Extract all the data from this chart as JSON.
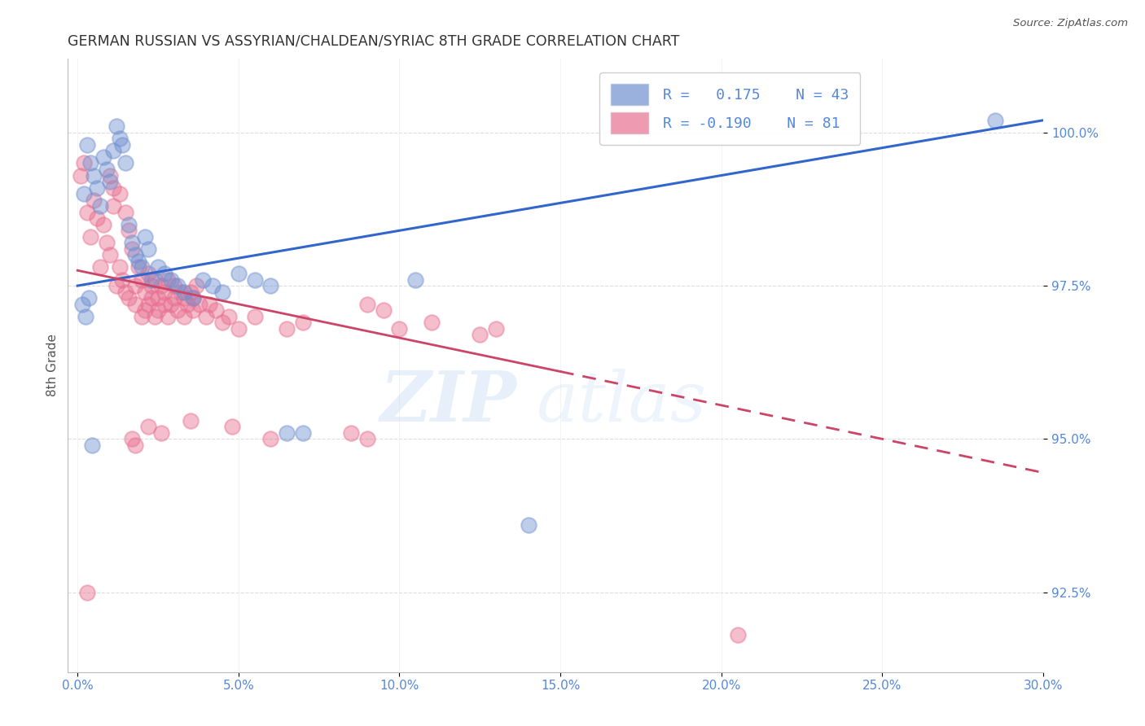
{
  "title": "GERMAN RUSSIAN VS ASSYRIAN/CHALDEAN/SYRIAC 8TH GRADE CORRELATION CHART",
  "source": "Source: ZipAtlas.com",
  "ylabel": "8th Grade",
  "y_ticks": [
    92.5,
    95.0,
    97.5,
    100.0
  ],
  "y_tick_labels": [
    "92.5%",
    "95.0%",
    "97.5%",
    "100.0%"
  ],
  "x_ticks": [
    0.0,
    5.0,
    10.0,
    15.0,
    20.0,
    25.0,
    30.0
  ],
  "xlim": [
    -0.3,
    30.0
  ],
  "ylim": [
    91.2,
    101.2
  ],
  "blue_R": 0.175,
  "blue_N": 43,
  "pink_R": -0.19,
  "pink_N": 81,
  "blue_color": "#7090D0",
  "pink_color": "#E87090",
  "blue_line_color": "#3366CC",
  "pink_line_color": "#CC4466",
  "watermark_zip": "ZIP",
  "watermark_atlas": "atlas",
  "blue_scatter_x": [
    0.2,
    0.3,
    0.4,
    0.5,
    0.6,
    0.7,
    0.8,
    0.9,
    1.0,
    1.1,
    1.2,
    1.3,
    1.4,
    1.5,
    1.6,
    1.7,
    1.8,
    1.9,
    2.0,
    2.1,
    2.2,
    2.3,
    2.5,
    2.7,
    2.9,
    3.1,
    3.3,
    3.6,
    3.9,
    4.2,
    4.5,
    5.0,
    5.5,
    6.0,
    6.5,
    7.0,
    0.15,
    0.25,
    0.35,
    0.45,
    10.5,
    14.0,
    28.5
  ],
  "blue_scatter_y": [
    99.0,
    99.8,
    99.5,
    99.3,
    99.1,
    98.8,
    99.6,
    99.4,
    99.2,
    99.7,
    100.1,
    99.9,
    99.8,
    99.5,
    98.5,
    98.2,
    98.0,
    97.9,
    97.8,
    98.3,
    98.1,
    97.6,
    97.8,
    97.7,
    97.6,
    97.5,
    97.4,
    97.3,
    97.6,
    97.5,
    97.4,
    97.7,
    97.6,
    97.5,
    95.1,
    95.1,
    97.2,
    97.0,
    97.3,
    94.9,
    97.6,
    93.6,
    100.2
  ],
  "pink_scatter_x": [
    0.1,
    0.2,
    0.3,
    0.4,
    0.5,
    0.6,
    0.7,
    0.8,
    0.9,
    1.0,
    1.0,
    1.1,
    1.1,
    1.2,
    1.3,
    1.3,
    1.4,
    1.5,
    1.5,
    1.6,
    1.6,
    1.7,
    1.8,
    1.8,
    1.9,
    2.0,
    2.0,
    2.1,
    2.1,
    2.2,
    2.2,
    2.3,
    2.3,
    2.4,
    2.4,
    2.5,
    2.5,
    2.6,
    2.7,
    2.7,
    2.8,
    2.8,
    2.9,
    3.0,
    3.0,
    3.1,
    3.2,
    3.3,
    3.3,
    3.4,
    3.5,
    3.6,
    3.6,
    3.7,
    3.8,
    4.0,
    4.1,
    4.3,
    4.5,
    4.7,
    5.0,
    5.5,
    6.5,
    7.0,
    8.5,
    9.0,
    9.0,
    9.5,
    10.0,
    11.0,
    12.5,
    13.0,
    1.7,
    1.8,
    2.2,
    2.6,
    3.5,
    4.8,
    6.0,
    20.5,
    0.3
  ],
  "pink_scatter_y": [
    99.3,
    99.5,
    98.7,
    98.3,
    98.9,
    98.6,
    97.8,
    98.5,
    98.2,
    98.0,
    99.3,
    99.1,
    98.8,
    97.5,
    97.8,
    99.0,
    97.6,
    97.4,
    98.7,
    97.3,
    98.4,
    98.1,
    97.5,
    97.2,
    97.8,
    97.6,
    97.0,
    97.4,
    97.1,
    97.7,
    97.2,
    97.5,
    97.3,
    97.6,
    97.0,
    97.3,
    97.1,
    97.5,
    97.2,
    97.4,
    97.6,
    97.0,
    97.2,
    97.5,
    97.3,
    97.1,
    97.4,
    97.3,
    97.0,
    97.2,
    97.4,
    97.1,
    97.3,
    97.5,
    97.2,
    97.0,
    97.2,
    97.1,
    96.9,
    97.0,
    96.8,
    97.0,
    96.8,
    96.9,
    95.1,
    97.2,
    95.0,
    97.1,
    96.8,
    96.9,
    96.7,
    96.8,
    95.0,
    94.9,
    95.2,
    95.1,
    95.3,
    95.2,
    95.0,
    91.8,
    92.5
  ],
  "blue_line_x0": 0.0,
  "blue_line_y0": 97.5,
  "blue_line_x1": 30.0,
  "blue_line_y1": 100.2,
  "pink_line_x0": 0.0,
  "pink_line_y0": 97.75,
  "pink_line_x1": 30.0,
  "pink_line_y1": 94.45,
  "pink_solid_end_x": 15.0,
  "background_color": "#FFFFFF",
  "grid_color": "#DDDDDD",
  "axis_color": "#4477CC",
  "title_color": "#333333",
  "tick_color": "#5588DD"
}
